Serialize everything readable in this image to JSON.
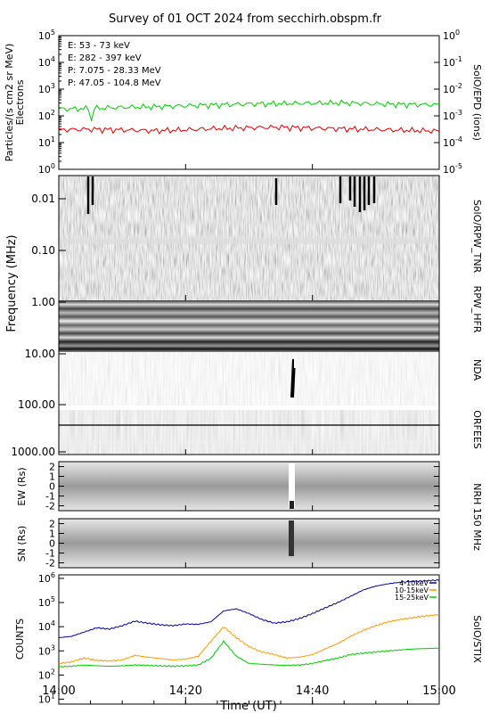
{
  "title": "Survey of 01 OCT 2024 from secchirh.obspm.fr",
  "chart_data": [
    {
      "panel": "SolO/EPD",
      "type": "line",
      "ylabel_left": "Particles/(s cm2 sr MeV)",
      "ylabel_left2": "Electrons",
      "ylabel_right": "SolO/EPD (ions)",
      "ylim_left": [
        1,
        100000
      ],
      "ylim_right": [
        1e-05,
        1
      ],
      "yscale": "log",
      "yticks_left": [
        "10^0",
        "10^1",
        "10^2",
        "10^3",
        "10^4",
        "10^5"
      ],
      "yticks_right": [
        "10^-5",
        "10^-4",
        "10^-3",
        "10^-2",
        "10^-1",
        "10^0"
      ],
      "legend": [
        {
          "label": "E: 53 - 73 keV",
          "color": "#00cc00"
        },
        {
          "label": "E: 282 - 397 keV",
          "color": "#dd0000"
        },
        {
          "label": "P: 7.075 - 28.33 MeV",
          "color": "#000000"
        },
        {
          "label": "P: 47.05 - 104.8 MeV",
          "color": "#0000cc"
        }
      ],
      "series": [
        {
          "name": "E: 53 - 73 keV",
          "color": "#00cc00",
          "x": [
            0,
            5,
            10,
            15,
            20,
            25,
            30,
            35,
            40,
            45,
            50,
            55,
            60
          ],
          "values": [
            180,
            190,
            210,
            220,
            240,
            260,
            280,
            290,
            300,
            310,
            280,
            270,
            260
          ]
        },
        {
          "name": "E: 282 - 397 keV",
          "color": "#dd0000",
          "x": [
            0,
            5,
            10,
            15,
            20,
            25,
            30,
            35,
            40,
            45,
            50,
            55,
            60
          ],
          "values": [
            30,
            32,
            30,
            28,
            30,
            34,
            36,
            38,
            35,
            33,
            31,
            29,
            27
          ]
        }
      ]
    },
    {
      "panel": "Radio dynamic spectrum",
      "type": "heatmap",
      "ylabel": "Frequency (MHz)",
      "yscale": "log",
      "ylim": [
        0.004,
        1500
      ],
      "yticks": [
        "0.01",
        "0.10",
        "1.00",
        "10.00",
        "100.00",
        "1000.00"
      ],
      "instruments_right": [
        "SolO/RPW_TNR",
        "RPW_HFR",
        "NDA",
        "ORFEES"
      ]
    },
    {
      "panel": "NRH 150 MHz EW",
      "type": "heatmap",
      "ylabel": "EW (Rs)",
      "ylim": [
        -2.5,
        2.5
      ],
      "yticks": [
        "2",
        "1",
        "0",
        "-1",
        "-2"
      ],
      "instrument_right": "NRH 150 MHz"
    },
    {
      "panel": "NRH 150 MHz SN",
      "type": "heatmap",
      "ylabel": "SN (Rs)",
      "ylim": [
        -2.5,
        2.5
      ],
      "yticks": [
        "2",
        "1",
        "0",
        "-1",
        "-2"
      ]
    },
    {
      "panel": "SolO/STIX",
      "type": "line",
      "ylabel": "COUNTS",
      "ylabel_right": "SolO/STIX",
      "yscale": "log",
      "ylim": [
        10,
        1000000
      ],
      "yticks": [
        "10^1",
        "10^2",
        "10^3",
        "10^4",
        "10^5",
        "10^6"
      ],
      "legend": [
        {
          "label": "4-10keV",
          "color": "#0000aa"
        },
        {
          "label": "10-15keV",
          "color": "#ff9900"
        },
        {
          "label": "15-25keV",
          "color": "#00cc00"
        }
      ],
      "series": [
        {
          "name": "4-10keV",
          "color": "#0000aa",
          "x": [
            0,
            2,
            4,
            6,
            8,
            10,
            12,
            14,
            16,
            18,
            20,
            22,
            24,
            26,
            28,
            30,
            32,
            34,
            36,
            38,
            40,
            42,
            44,
            46,
            48,
            50,
            52,
            54,
            56,
            58,
            60
          ],
          "values": [
            3500,
            4000,
            6000,
            9000,
            8000,
            11000,
            17000,
            14000,
            12000,
            11000,
            13000,
            12500,
            16000,
            45000,
            55000,
            35000,
            20000,
            14000,
            16000,
            22000,
            35000,
            60000,
            100000,
            180000,
            330000,
            480000,
            600000,
            700000,
            750000,
            800000,
            850000
          ]
        },
        {
          "name": "10-15keV",
          "color": "#ff9900",
          "x": [
            0,
            2,
            4,
            6,
            8,
            10,
            12,
            14,
            16,
            18,
            20,
            22,
            24,
            26,
            28,
            30,
            32,
            34,
            36,
            38,
            40,
            42,
            44,
            46,
            48,
            50,
            52,
            54,
            56,
            58,
            60
          ],
          "values": [
            300,
            350,
            500,
            400,
            380,
            420,
            650,
            550,
            480,
            420,
            450,
            600,
            2500,
            10000,
            3500,
            1500,
            900,
            700,
            500,
            550,
            700,
            1200,
            2000,
            4000,
            7000,
            11000,
            16000,
            20000,
            24000,
            28000,
            32000
          ]
        },
        {
          "name": "15-25keV",
          "color": "#00cc00",
          "x": [
            0,
            2,
            4,
            6,
            8,
            10,
            12,
            14,
            16,
            18,
            20,
            22,
            24,
            26,
            28,
            30,
            32,
            34,
            36,
            38,
            40,
            42,
            44,
            46,
            48,
            50,
            52,
            54,
            56,
            58,
            60
          ],
          "values": [
            220,
            230,
            260,
            240,
            230,
            240,
            260,
            250,
            240,
            230,
            240,
            260,
            500,
            2500,
            600,
            300,
            280,
            260,
            250,
            260,
            300,
            400,
            500,
            700,
            800,
            900,
            1000,
            1100,
            1200,
            1250,
            1300
          ]
        }
      ],
      "xlabel": "Time (UT)",
      "xticks": [
        "14:00",
        "14:20",
        "14:40",
        "15:00"
      ]
    }
  ]
}
